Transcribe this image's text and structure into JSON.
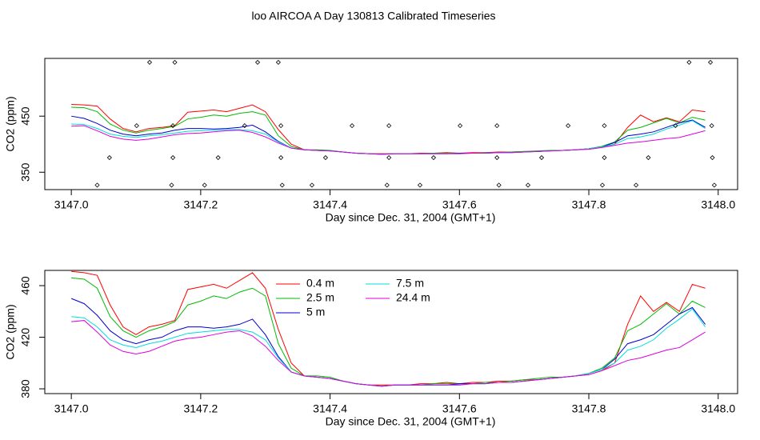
{
  "chart_data": [
    {
      "type": "line",
      "title": "loo AIRCOA A  Day 130813  Calibrated Timeseries",
      "x_label": "Day since Dec. 31, 2004 (GMT+1)",
      "y_label": "CO2 (ppm)",
      "xlim": [
        3146.959,
        3148.03
      ],
      "ylim": [
        319,
        553
      ],
      "xticks": [
        {
          "value": 3147,
          "label": "3147.0"
        },
        3147.2,
        3147.4,
        3147.6,
        3147.8,
        {
          "value": 3148,
          "label": "3148.0"
        }
      ],
      "yticks": [
        350,
        450
      ],
      "x": [
        3147,
        3147.02,
        3147.04,
        3147.06,
        3147.08,
        3147.1,
        3147.12,
        3147.14,
        3147.16,
        3147.18,
        3147.2,
        3147.22,
        3147.24,
        3147.26,
        3147.28,
        3147.3,
        3147.32,
        3147.34,
        3147.36,
        3147.38,
        3147.4,
        3147.42,
        3147.44,
        3147.46,
        3147.48,
        3147.5,
        3147.52,
        3147.54,
        3147.56,
        3147.58,
        3147.6,
        3147.62,
        3147.64,
        3147.66,
        3147.68,
        3147.7,
        3147.72,
        3147.74,
        3147.76,
        3147.78,
        3147.8,
        3147.82,
        3147.84,
        3147.86,
        3147.88,
        3147.9,
        3147.92,
        3147.94,
        3147.96,
        3147.98
      ],
      "series": [
        {
          "color": "#ff0000",
          "values": [
            471,
            470,
            468,
            445,
            428,
            422,
            428,
            430,
            433,
            457,
            459,
            461,
            458,
            464,
            470,
            458,
            426,
            400,
            390,
            389,
            388,
            386,
            384,
            383,
            383,
            383,
            383,
            384,
            384,
            385,
            384,
            385,
            385,
            386,
            386,
            387,
            387,
            388,
            389,
            390,
            391,
            394,
            400,
            430,
            452,
            440,
            447,
            440,
            461,
            458
          ]
        },
        {
          "color": "#00bb00",
          "values": [
            466,
            465,
            458,
            436,
            425,
            420,
            425,
            428,
            432,
            445,
            448,
            452,
            450,
            455,
            458,
            452,
            415,
            396,
            390,
            390,
            389,
            386,
            384,
            383,
            382,
            383,
            383,
            383,
            384,
            384,
            384,
            384,
            385,
            385,
            386,
            387,
            388,
            389,
            389,
            390,
            392,
            396,
            404,
            425,
            430,
            438,
            446,
            438,
            448,
            443
          ]
        },
        {
          "color": "#0000cc",
          "values": [
            450,
            446,
            437,
            425,
            418,
            415,
            418,
            420,
            425,
            428,
            428,
            427,
            428,
            430,
            434,
            422,
            405,
            393,
            390,
            389,
            388,
            386,
            384,
            383,
            382,
            383,
            383,
            383,
            383,
            383,
            384,
            384,
            384,
            385,
            385,
            386,
            387,
            388,
            389,
            390,
            392,
            395,
            403,
            415,
            418,
            422,
            430,
            438,
            443,
            430
          ]
        },
        {
          "color": "#00dddd",
          "values": [
            436,
            435,
            428,
            418,
            414,
            412,
            415,
            417,
            420,
            423,
            424,
            425,
            426,
            426,
            424,
            418,
            404,
            393,
            390,
            389,
            388,
            386,
            384,
            383,
            382,
            383,
            383,
            383,
            383,
            383,
            383,
            384,
            384,
            385,
            385,
            386,
            387,
            388,
            389,
            390,
            392,
            395,
            400,
            410,
            413,
            418,
            427,
            434,
            442,
            428
          ]
        },
        {
          "color": "#dd00dd",
          "values": [
            432,
            433,
            424,
            414,
            409,
            407,
            409,
            413,
            417,
            419,
            420,
            422,
            424,
            425,
            421,
            413,
            402,
            393,
            390,
            389,
            388,
            386,
            384,
            383,
            382,
            383,
            383,
            383,
            383,
            383,
            383,
            384,
            384,
            385,
            385,
            386,
            387,
            388,
            389,
            390,
            391,
            394,
            398,
            402,
            404,
            407,
            410,
            412,
            418,
            424
          ]
        }
      ],
      "points": {
        "color": "#000000",
        "x": [
          3147.121,
          3147.16,
          3147.288,
          3147.32,
          3147.955,
          3147.988,
          3147.101,
          3147.157,
          3147.268,
          3147.324,
          3147.434,
          3147.491,
          3147.601,
          3147.658,
          3147.768,
          3147.824,
          3147.934,
          3147.99,
          3147.059,
          3147.157,
          3147.227,
          3147.324,
          3147.393,
          3147.491,
          3147.56,
          3147.658,
          3147.727,
          3147.824,
          3147.892,
          3147.991,
          3147.04,
          3147.155,
          3147.206,
          3147.326,
          3147.372,
          3147.488,
          3147.539,
          3147.661,
          3147.706,
          3147.821,
          3147.873,
          3147.994
        ],
        "y": [
          546,
          546,
          546,
          546,
          546,
          546,
          433,
          433,
          433,
          433,
          433,
          433,
          433,
          433,
          433,
          433,
          433,
          433,
          376,
          376,
          376,
          376,
          376,
          376,
          376,
          376,
          376,
          376,
          376,
          376,
          327,
          327,
          327,
          327,
          327,
          327,
          327,
          327,
          327,
          327,
          327,
          327
        ]
      }
    },
    {
      "type": "line",
      "x_label": "Day since Dec. 31, 2004 (GMT+1)",
      "y_label": "CO2 (ppm)",
      "xlim": [
        3146.959,
        3148.03
      ],
      "ylim": [
        376.3,
        471.8
      ],
      "xticks": [
        {
          "value": 3147,
          "label": "3147.0"
        },
        3147.2,
        3147.4,
        3147.6,
        3147.8,
        {
          "value": 3148,
          "label": "3148.0"
        }
      ],
      "yticks": [
        380,
        420,
        460
      ],
      "x": [
        3147,
        3147.02,
        3147.04,
        3147.06,
        3147.08,
        3147.1,
        3147.12,
        3147.14,
        3147.16,
        3147.18,
        3147.2,
        3147.22,
        3147.24,
        3147.26,
        3147.28,
        3147.3,
        3147.32,
        3147.34,
        3147.36,
        3147.38,
        3147.4,
        3147.42,
        3147.44,
        3147.46,
        3147.48,
        3147.5,
        3147.52,
        3147.54,
        3147.56,
        3147.58,
        3147.6,
        3147.62,
        3147.64,
        3147.66,
        3147.68,
        3147.7,
        3147.72,
        3147.74,
        3147.76,
        3147.78,
        3147.8,
        3147.82,
        3147.84,
        3147.86,
        3147.88,
        3147.9,
        3147.92,
        3147.94,
        3147.96,
        3147.98
      ],
      "series": [
        {
          "name": "0.4 m",
          "color": "#ff0000",
          "values": [
            471,
            470,
            468,
            445,
            428,
            422,
            428,
            430,
            433,
            457,
            459,
            461,
            458,
            464,
            470,
            458,
            426,
            400,
            390,
            389,
            388,
            386,
            384,
            383,
            383,
            383,
            383,
            384,
            384,
            385,
            384,
            385,
            385,
            386,
            386,
            387,
            387,
            388,
            389,
            390,
            391,
            394,
            400,
            430,
            452,
            440,
            447,
            440,
            461,
            458
          ]
        },
        {
          "name": "2.5 m",
          "color": "#00bb00",
          "values": [
            466,
            465,
            458,
            436,
            425,
            420,
            425,
            428,
            432,
            445,
            448,
            452,
            450,
            455,
            458,
            452,
            415,
            396,
            390,
            390,
            389,
            386,
            384,
            383,
            382,
            383,
            383,
            383,
            384,
            384,
            384,
            384,
            385,
            385,
            386,
            387,
            388,
            389,
            389,
            390,
            392,
            396,
            404,
            425,
            430,
            438,
            446,
            438,
            448,
            443
          ]
        },
        {
          "name": "5 m",
          "color": "#0000cc",
          "values": [
            450,
            446,
            437,
            425,
            418,
            415,
            418,
            420,
            425,
            428,
            428,
            427,
            428,
            430,
            434,
            422,
            405,
            393,
            390,
            389,
            388,
            386,
            384,
            383,
            382,
            383,
            383,
            383,
            383,
            383,
            384,
            384,
            384,
            385,
            385,
            386,
            387,
            388,
            389,
            390,
            392,
            395,
            403,
            415,
            418,
            422,
            430,
            438,
            443,
            430
          ]
        },
        {
          "name": "7.5 m",
          "color": "#00dddd",
          "values": [
            436,
            435,
            428,
            418,
            414,
            412,
            415,
            417,
            420,
            423,
            424,
            425,
            426,
            426,
            424,
            418,
            404,
            393,
            390,
            389,
            388,
            386,
            384,
            383,
            382,
            383,
            383,
            383,
            383,
            383,
            383,
            384,
            384,
            385,
            385,
            386,
            387,
            388,
            389,
            390,
            392,
            395,
            400,
            410,
            413,
            418,
            427,
            434,
            442,
            428
          ]
        },
        {
          "name": "24.4 m",
          "color": "#dd00dd",
          "values": [
            432,
            433,
            424,
            414,
            409,
            407,
            409,
            413,
            417,
            419,
            420,
            422,
            424,
            425,
            421,
            413,
            402,
            393,
            390,
            389,
            388,
            386,
            384,
            383,
            382,
            383,
            383,
            383,
            383,
            383,
            383,
            384,
            384,
            385,
            385,
            386,
            387,
            388,
            389,
            390,
            391,
            394,
            398,
            402,
            404,
            407,
            410,
            412,
            418,
            424
          ]
        }
      ]
    }
  ]
}
